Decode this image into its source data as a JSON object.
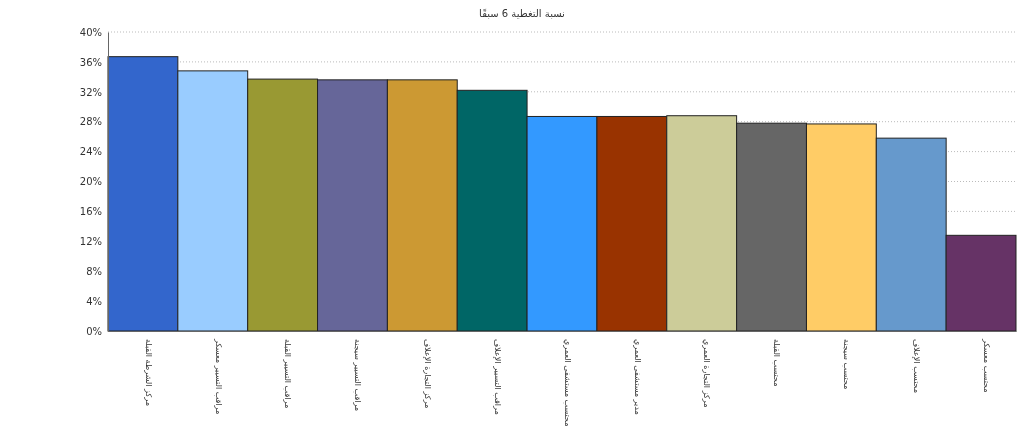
{
  "chart_data": {
    "type": "bar",
    "title": "نسبة التغطية 6 سبقًا",
    "categories": [
      "مركز الشرطة القبلة",
      "مراقب التسيير معسكر",
      "مراقب التسيير القبلة",
      "مراقب التسيير سيجنة",
      "مركز التجارة الإعلاف",
      "مراقب التسيير الإعلاف",
      "محتسب مستشفى العمري",
      "مدير مستشفى العمري",
      "مركز التجارة العمري",
      "محتسب القبلة",
      "محتسب سيجنة",
      "محتسب الإعلاف",
      "محتسب معسكر"
    ],
    "values": [
      36.7,
      34.8,
      33.7,
      33.6,
      33.6,
      32.2,
      28.7,
      28.7,
      28.8,
      27.8,
      27.7,
      25.8,
      12.8
    ],
    "colors": [
      "#3366cc",
      "#99ccff",
      "#999933",
      "#666699",
      "#cc9933",
      "#006666",
      "#3399ff",
      "#993300",
      "#cccc99",
      "#666666",
      "#ffcc66",
      "#6699cc",
      "#663366"
    ],
    "ylim": [
      0,
      40
    ],
    "yticks": [
      {
        "value": 0,
        "label": "0%"
      },
      {
        "value": 4,
        "label": "4%"
      },
      {
        "value": 8,
        "label": "8%"
      },
      {
        "value": 12,
        "label": "12%"
      },
      {
        "value": 16,
        "label": "16%"
      },
      {
        "value": 20,
        "label": "20%"
      },
      {
        "value": 24,
        "label": "24%"
      },
      {
        "value": 28,
        "label": "28%"
      },
      {
        "value": 32,
        "label": "32%"
      },
      {
        "value": 36,
        "label": "36%"
      },
      {
        "value": 40,
        "label": "40%"
      }
    ],
    "grid": "y"
  }
}
